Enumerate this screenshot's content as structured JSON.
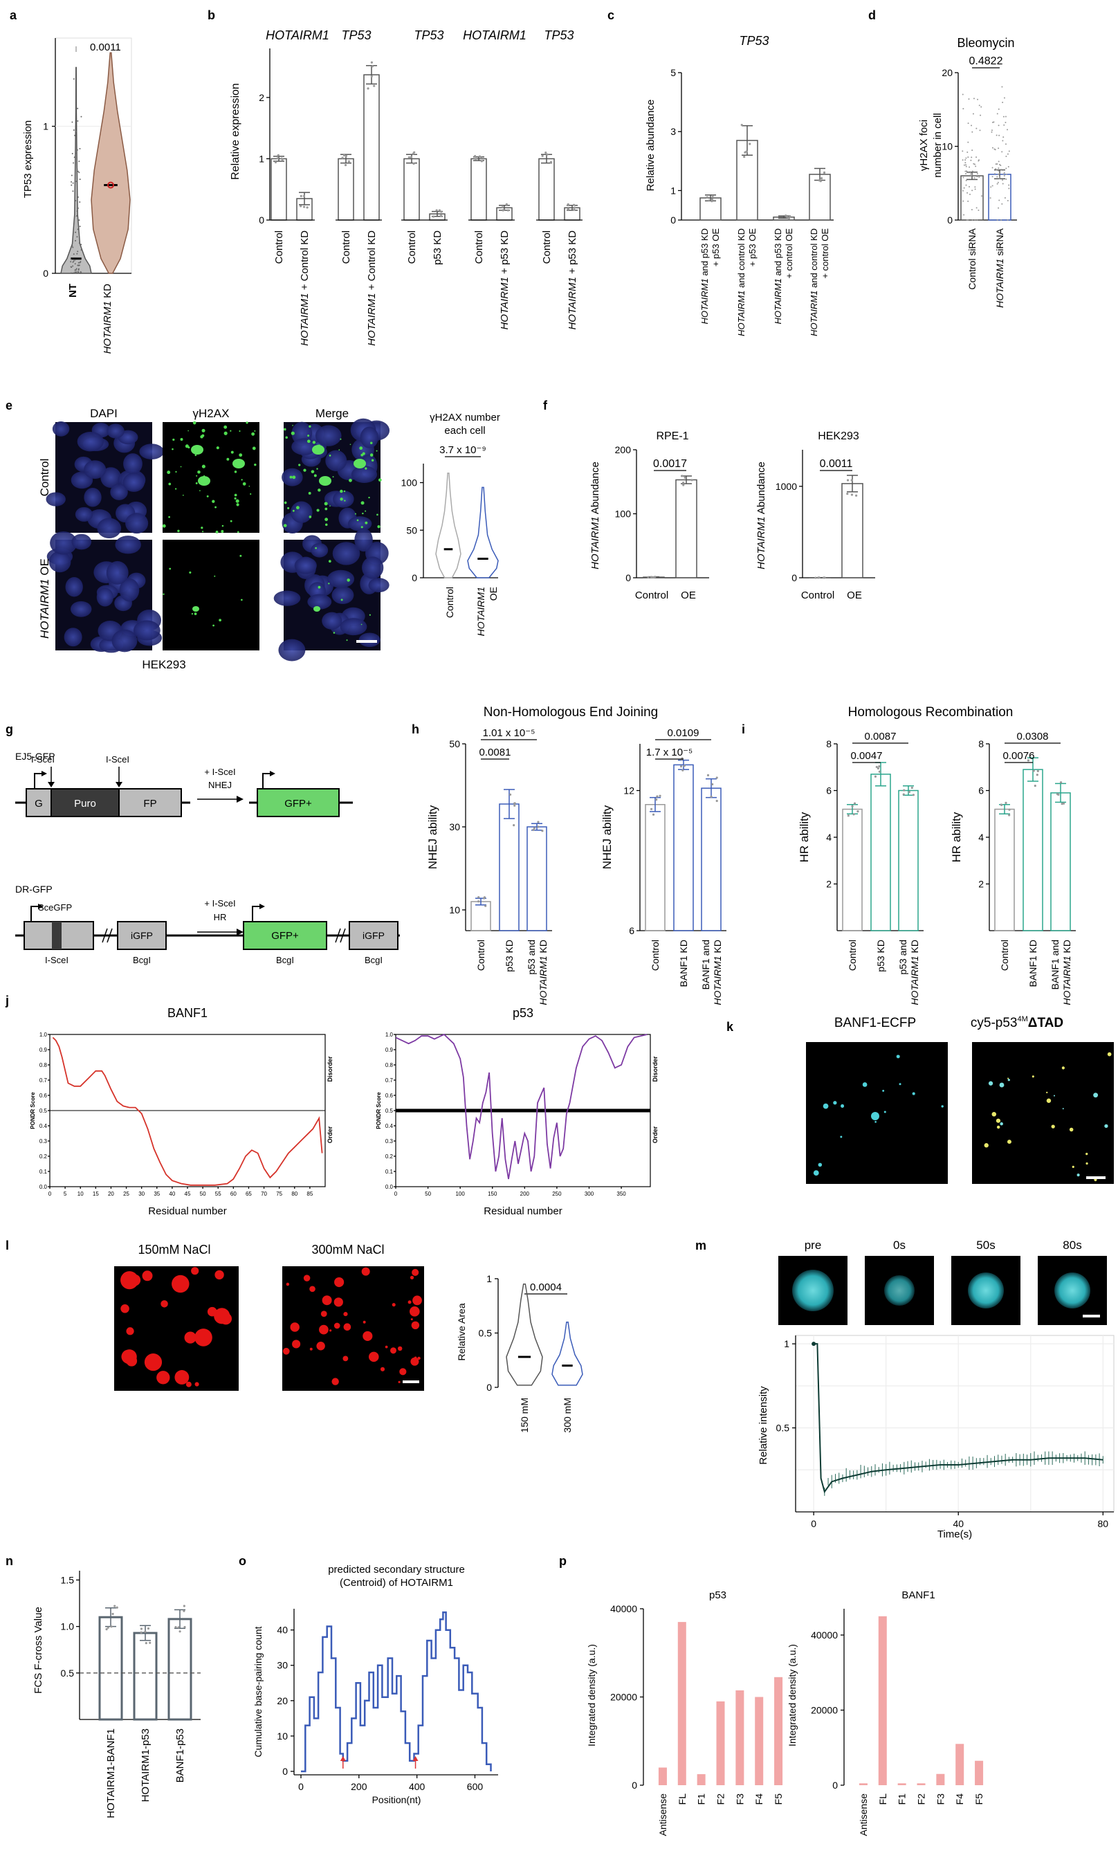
{
  "letters": {
    "a": "a",
    "b": "b",
    "c": "c",
    "d": "d",
    "e": "e",
    "f": "f",
    "g": "g",
    "h": "h",
    "i": "i",
    "j": "j",
    "k": "k",
    "l": "l",
    "m": "m",
    "n": "n",
    "o": "o",
    "p": "p"
  },
  "colors": {
    "blue": "#3a5bb8",
    "teal": "#2aa58c",
    "grey": "#777777",
    "red": "#d6332a",
    "purple": "#7d3aa3",
    "pink": "#f2a6a6",
    "cyan": "#4fd1d9",
    "violin_nt": "#bdbdbd",
    "violin_kd": "#d8b7a6"
  },
  "a": {
    "ylabel": "TP53 expression",
    "yticks": [
      "0",
      "1"
    ],
    "pval": "0.0011",
    "xlabels": [
      "NT",
      "HOTAIRM1 KD"
    ]
  },
  "b": {
    "ylabel": "Relative expression",
    "yticks": [
      "0",
      "1",
      "2"
    ],
    "headers": [
      {
        "text": "HOTAIRM1",
        "italic": true
      },
      {
        "text": "TP53",
        "italic": true
      },
      {
        "text": "TP53",
        "italic": true
      },
      {
        "text": "HOTAIRM1",
        "italic": true
      },
      {
        "text": "TP53",
        "italic": true
      }
    ],
    "xlabels": [
      "Control",
      "HOTAIRM1 + Control KD",
      "Control",
      "HOTAIRM1 + Control KD",
      "Control",
      "p53 KD",
      "Control",
      "HOTAIRM1 + p53 KD",
      "Control",
      "HOTAIRM1 + p53 KD"
    ]
  },
  "c": {
    "title": "TP53",
    "ylabel": "Relative abundance",
    "yticks": [
      "0",
      "1",
      "3",
      "5"
    ],
    "xlabels": [
      "HOTAIRM1 and p53 KD + p53 OE",
      "HOTAIRM1 and control KD + p53 OE",
      "HOTAIRM1 and p53 KD + control OE",
      "HOTAIRM1 and control KD + control OE"
    ]
  },
  "d": {
    "title": "Bleomycin",
    "ylabel": "γH2AX foci number in cell",
    "yticks": [
      "0",
      "10",
      "20"
    ],
    "pval": "0.4822",
    "xlabels": [
      "Control siRNA",
      "HOTAIRM1 siRNA"
    ]
  },
  "e": {
    "cols": [
      "DAPI",
      "γH2AX",
      "Merge"
    ],
    "rows": [
      "Control",
      "HOTAIRM1 OE"
    ],
    "caption": "HEK293",
    "violin_title": "γH2AX number each cell",
    "pval": "3.7 x 10⁻⁹",
    "yticks": [
      "0",
      "50",
      "100"
    ],
    "xlabels": [
      "Control",
      "HOTAIRM1 OE"
    ]
  },
  "f": {
    "ylabel": "HOTAIRM1 Abundance",
    "panels": [
      {
        "title": "RPE-1",
        "pval": "0.0017",
        "yticks": [
          "0",
          "100",
          "200"
        ]
      },
      {
        "title": "HEK293",
        "pval": "0.0011",
        "yticks": [
          "0",
          "1000"
        ]
      }
    ],
    "xlabels": [
      "Control",
      "OE"
    ]
  },
  "g": {
    "ej5": "EJ5-GFP",
    "dr": "DR-GFP",
    "isce": "I-SceI",
    "g": "G",
    "puro": "Puro",
    "fp": "FP",
    "plus_isce": "+ I-SceI",
    "nhej": "NHEJ",
    "hr": "HR",
    "gfpplus": "GFP+",
    "scegfp": "SceGFP",
    "igfp": "iGFP",
    "bcgi": "BcgI"
  },
  "h": {
    "title": "Non-Homologous End Joining",
    "ylabel": "NHEJ ability",
    "left": {
      "yticks": [
        "10",
        "30",
        "50"
      ],
      "xlabels": [
        "Control",
        "p53 KD",
        "p53 and HOTAIRM1 KD"
      ],
      "pvals": [
        "0.0081",
        "1.01 x 10⁻⁵"
      ]
    },
    "right": {
      "yticks": [
        "6",
        "12"
      ],
      "xlabels": [
        "Control",
        "BANF1 KD",
        "BANF1 and HOTAIRM1 KD"
      ],
      "pvals": [
        "1.7 x 10⁻⁵",
        "0.0109"
      ]
    }
  },
  "i": {
    "title": "Homologous Recombination",
    "ylabel": "HR ability",
    "left": {
      "yticks": [
        "2",
        "4",
        "6",
        "8"
      ],
      "xlabels": [
        "Control",
        "p53 KD",
        "p53 and HOTAIRM1 KD"
      ],
      "pvals": [
        "0.0047",
        "0.0087"
      ]
    },
    "right": {
      "yticks": [
        "2",
        "4",
        "6",
        "8"
      ],
      "xlabels": [
        "Control",
        "BANF1 KD",
        "BANF1 and HOTAIRM1 KD"
      ],
      "pvals": [
        "0.0076",
        "0.0308"
      ]
    }
  },
  "j": {
    "xlabel": "Residual number",
    "ylabel": "PONDR Score",
    "disorder": "Disorder",
    "order": "Order",
    "left": {
      "title": "BANF1",
      "xticks": [
        "0",
        "5",
        "10",
        "15",
        "20",
        "25",
        "30",
        "35",
        "40",
        "45",
        "50",
        "55",
        "60",
        "65",
        "70",
        "75",
        "80",
        "85"
      ],
      "yticks": [
        "0.0",
        "0.1",
        "0.2",
        "0.3",
        "0.4",
        "0.5",
        "0.6",
        "0.7",
        "0.8",
        "0.9",
        "1.0"
      ]
    },
    "right": {
      "title": "p53",
      "xticks": [
        "0",
        "50",
        "100",
        "150",
        "200",
        "250",
        "300",
        "350"
      ],
      "yticks": [
        "0.0",
        "0.1",
        "0.2",
        "0.3",
        "0.4",
        "0.5",
        "0.6",
        "0.7",
        "0.8",
        "0.9",
        "1.0"
      ]
    }
  },
  "k": {
    "left": "BANF1-ECFP",
    "right": "cy5-p53",
    "right_sup": "4M",
    "right_tail": "ΔTAD"
  },
  "l": {
    "left": "150mM NaCl",
    "right": "300mM NaCl",
    "ylabel": "Relative Area",
    "yticks": [
      "0",
      "0.5",
      "1"
    ],
    "pval": "0.0004",
    "xlabels": [
      "150 mM",
      "300 mM"
    ]
  },
  "m": {
    "frames": [
      "pre",
      "0s",
      "50s",
      "80s"
    ],
    "ylabel": "Relative intensity",
    "xlabel": "Time(s)",
    "xticks": [
      "0",
      "40",
      "80"
    ],
    "yticks": [
      "0.5",
      "1"
    ]
  },
  "n": {
    "ylabel": "FCS F-cross Value",
    "yticks": [
      "0.5",
      "1.0",
      "1.5"
    ],
    "xlabels": [
      "HOTAIRM1-BANF1",
      "HOTAIRM1-p53",
      "BANF1-p53"
    ]
  },
  "o": {
    "title": "predicted secondary structure (Centroid) of HOTAIRM1",
    "title1": "predicted secondary structure",
    "title2": "(Centroid) of HOTAIRM1",
    "ylabel": "Cumulative base-pairing count",
    "xlabel": "Position(nt)",
    "xticks": [
      "0",
      "200",
      "400",
      "600"
    ],
    "yticks": [
      "0",
      "10",
      "20",
      "30",
      "40"
    ]
  },
  "p": {
    "ylabel": "Integrated density (a.u.)",
    "categories": [
      "Antisense",
      "FL",
      "F1",
      "F2",
      "F3",
      "F4",
      "F5"
    ],
    "left": {
      "title": "p53",
      "yticks": [
        "0",
        "20000",
        "40000"
      ]
    },
    "right": {
      "title": "BANF1",
      "yticks": [
        "0",
        "20000",
        "40000"
      ]
    }
  },
  "chart_data": [
    {
      "panel": "a",
      "type": "violin",
      "categories": [
        "NT",
        "HOTAIRM1 KD"
      ],
      "medians": [
        0.1,
        0.6
      ],
      "pvalue": "0.0011",
      "ylabel": "TP53 expression",
      "ylim": [
        0,
        1.6
      ]
    },
    {
      "panel": "b",
      "type": "bar",
      "categories": [
        "Control",
        "HOTAIRM1 + Control KD",
        "Control",
        "HOTAIRM1 + Control KD",
        "Control",
        "p53 KD",
        "Control",
        "HOTAIRM1 + p53 KD",
        "Control",
        "HOTAIRM1 + p53 KD"
      ],
      "values": [
        1.0,
        0.35,
        1.0,
        2.37,
        1.0,
        0.1,
        1.0,
        0.2,
        1.0,
        0.2
      ],
      "errors": [
        0.04,
        0.1,
        0.07,
        0.15,
        0.07,
        0.04,
        0.03,
        0.04,
        0.07,
        0.04
      ],
      "ylabel": "Relative expression",
      "ylim": [
        0,
        2.8
      ]
    },
    {
      "panel": "c",
      "type": "bar",
      "title": "TP53",
      "categories": [
        "HOTAIRM1 and p53 KD + p53 OE",
        "HOTAIRM1 and control KD + p53 OE",
        "HOTAIRM1 and p53 KD + control OE",
        "HOTAIRM1 and control KD + control OE"
      ],
      "values": [
        0.75,
        2.7,
        0.1,
        1.55
      ],
      "errors": [
        0.1,
        0.5,
        0.04,
        0.2
      ],
      "ylabel": "Relative abundance",
      "ylim": [
        0,
        5
      ]
    },
    {
      "panel": "d",
      "type": "bar",
      "title": "Bleomycin",
      "categories": [
        "Control siRNA",
        "HOTAIRM1 siRNA"
      ],
      "values": [
        6.0,
        6.2
      ],
      "errors": [
        0.5,
        0.6
      ],
      "ylabel": "γH2AX foci number in cell",
      "ylim": [
        0,
        20
      ],
      "pvalue": "0.4822"
    },
    {
      "panel": "e",
      "type": "violin",
      "categories": [
        "Control",
        "HOTAIRM1 OE"
      ],
      "medians": [
        30,
        20
      ],
      "ylim": [
        0,
        120
      ],
      "pvalue": "3.7 x 10⁻⁹"
    },
    {
      "panel": "f-RPE-1",
      "type": "bar",
      "categories": [
        "Control",
        "OE"
      ],
      "values": [
        1,
        153
      ],
      "errors": [
        0.5,
        6
      ],
      "ylim": [
        0,
        200
      ],
      "pvalue": "0.0017"
    },
    {
      "panel": "f-HEK293",
      "type": "bar",
      "categories": [
        "Control",
        "OE"
      ],
      "values": [
        1,
        1030
      ],
      "errors": [
        1,
        90
      ],
      "ylim": [
        0,
        1400
      ],
      "pvalue": "0.0011"
    },
    {
      "panel": "h-left",
      "type": "bar",
      "categories": [
        "Control",
        "p53 KD",
        "p53 and HOTAIRM1 KD"
      ],
      "values": [
        12,
        35.5,
        30
      ],
      "errors": [
        0.8,
        3.5,
        0.8
      ],
      "ylim": [
        5,
        50
      ],
      "pvalues": [
        "0.0081",
        "1.01 x 10⁻⁵"
      ]
    },
    {
      "panel": "h-right",
      "type": "bar",
      "categories": [
        "Control",
        "BANF1 KD",
        "BANF1 and HOTAIRM1 KD"
      ],
      "values": [
        11.4,
        13.1,
        12.1
      ],
      "errors": [
        0.3,
        0.2,
        0.4
      ],
      "ylim": [
        6,
        14
      ],
      "pvalues": [
        "1.7 x 10⁻⁵",
        "0.0109"
      ]
    },
    {
      "panel": "i-left",
      "type": "bar",
      "categories": [
        "Control",
        "p53 KD",
        "p53 and HOTAIRM1 KD"
      ],
      "values": [
        5.2,
        6.7,
        6.0
      ],
      "errors": [
        0.2,
        0.5,
        0.2
      ],
      "ylim": [
        0,
        8
      ],
      "pvalues": [
        "0.0047",
        "0.0087"
      ]
    },
    {
      "panel": "i-right",
      "type": "bar",
      "categories": [
        "Control",
        "BANF1 KD",
        "BANF1 and HOTAIRM1 KD"
      ],
      "values": [
        5.2,
        6.9,
        5.9
      ],
      "errors": [
        0.2,
        0.5,
        0.4
      ],
      "ylim": [
        0,
        8
      ],
      "pvalues": [
        "0.0076",
        "0.0308"
      ]
    },
    {
      "panel": "j-BANF1",
      "type": "line",
      "x": [
        1,
        2,
        3,
        4,
        6,
        8,
        10,
        13,
        15,
        17,
        18,
        20,
        22,
        24,
        26,
        28,
        30,
        32,
        34,
        36,
        38,
        40,
        43,
        46,
        50,
        54,
        58,
        60,
        62,
        64,
        66,
        68,
        70,
        72,
        74,
        76,
        78,
        80,
        82,
        84,
        86,
        88,
        89
      ],
      "y": [
        0.98,
        0.96,
        0.92,
        0.85,
        0.68,
        0.66,
        0.66,
        0.72,
        0.76,
        0.76,
        0.73,
        0.64,
        0.56,
        0.53,
        0.52,
        0.52,
        0.48,
        0.38,
        0.25,
        0.16,
        0.08,
        0.04,
        0.02,
        0.01,
        0.01,
        0.01,
        0.02,
        0.05,
        0.12,
        0.2,
        0.24,
        0.22,
        0.12,
        0.06,
        0.1,
        0.16,
        0.22,
        0.26,
        0.3,
        0.34,
        0.38,
        0.45,
        0.22
      ],
      "xlim": [
        0,
        90
      ],
      "ylim": [
        0,
        1
      ]
    },
    {
      "panel": "j-p53",
      "type": "line",
      "x": [
        0,
        10,
        20,
        30,
        40,
        50,
        60,
        70,
        75,
        80,
        85,
        90,
        100,
        105,
        110,
        115,
        120,
        125,
        130,
        135,
        140,
        145,
        150,
        155,
        160,
        165,
        170,
        175,
        180,
        185,
        190,
        195,
        200,
        205,
        210,
        215,
        220,
        225,
        230,
        235,
        240,
        245,
        250,
        255,
        260,
        265,
        270,
        280,
        290,
        300,
        310,
        320,
        330,
        340,
        350,
        360,
        370,
        380,
        390
      ],
      "y": [
        0.98,
        0.96,
        0.94,
        0.96,
        0.99,
        0.99,
        0.97,
        0.99,
        1.0,
        0.98,
        0.96,
        0.94,
        0.84,
        0.72,
        0.4,
        0.18,
        0.3,
        0.45,
        0.42,
        0.55,
        0.62,
        0.75,
        0.35,
        0.1,
        0.2,
        0.45,
        0.18,
        0.05,
        0.18,
        0.3,
        0.15,
        0.25,
        0.35,
        0.3,
        0.1,
        0.2,
        0.55,
        0.6,
        0.65,
        0.28,
        0.12,
        0.32,
        0.42,
        0.2,
        0.25,
        0.48,
        0.55,
        0.78,
        0.92,
        0.97,
        0.99,
        0.96,
        0.88,
        0.78,
        0.8,
        0.92,
        0.98,
        0.99,
        1.0
      ],
      "xlim": [
        0,
        395
      ],
      "ylim": [
        0,
        1
      ]
    },
    {
      "panel": "l",
      "type": "violin",
      "categories": [
        "150 mM",
        "300 mM"
      ],
      "medians": [
        0.28,
        0.2
      ],
      "ylim": [
        0,
        1
      ],
      "pvalue": "0.0004"
    },
    {
      "panel": "m",
      "type": "line",
      "x": [
        0,
        1,
        2,
        3,
        5,
        8,
        12,
        16,
        20,
        25,
        30,
        35,
        40,
        45,
        50,
        55,
        60,
        65,
        70,
        75,
        80
      ],
      "y": [
        1.0,
        1.0,
        0.2,
        0.12,
        0.18,
        0.2,
        0.22,
        0.24,
        0.25,
        0.26,
        0.27,
        0.28,
        0.28,
        0.29,
        0.3,
        0.31,
        0.31,
        0.32,
        0.32,
        0.32,
        0.31
      ],
      "xlabel": "Time(s)",
      "ylabel": "Relative intensity",
      "xlim": [
        -5,
        83
      ],
      "ylim": [
        0,
        1.05
      ]
    },
    {
      "panel": "n",
      "type": "bar",
      "categories": [
        "HOTAIRM1-BANF1",
        "HOTAIRM1-p53",
        "BANF1-p53"
      ],
      "values": [
        1.1,
        0.93,
        1.08
      ],
      "errors": [
        0.1,
        0.08,
        0.1
      ],
      "ylabel": "FCS F-cross Value",
      "ylim": [
        0,
        1.6
      ],
      "reference_line": 0.5
    },
    {
      "panel": "o",
      "type": "line",
      "x": [
        0,
        15,
        30,
        45,
        60,
        75,
        90,
        105,
        120,
        135,
        145,
        160,
        175,
        190,
        205,
        220,
        235,
        250,
        265,
        280,
        300,
        315,
        330,
        345,
        360,
        375,
        390,
        405,
        420,
        435,
        450,
        465,
        480,
        490,
        500,
        515,
        530,
        545,
        560,
        575,
        590,
        610,
        625,
        640,
        655
      ],
      "y": [
        0,
        13,
        21,
        15,
        28,
        38,
        41,
        32,
        18,
        5,
        3,
        8,
        15,
        25,
        13,
        20,
        28,
        18,
        30,
        21,
        32,
        22,
        27,
        17,
        8,
        3,
        5,
        13,
        27,
        37,
        32,
        40,
        43,
        45,
        40,
        35,
        32,
        23,
        30,
        28,
        22,
        18,
        8,
        2,
        0
      ],
      "xlabel": "Position(nt)",
      "ylabel": "Cumulative base-pairing count",
      "xlim": [
        0,
        680
      ],
      "ylim": [
        0,
        46
      ]
    },
    {
      "panel": "p-p53",
      "type": "bar",
      "title": "p53",
      "categories": [
        "Antisense",
        "FL",
        "F1",
        "F2",
        "F3",
        "F4",
        "F5"
      ],
      "values": [
        4000,
        37000,
        2500,
        19000,
        21500,
        20000,
        24500
      ],
      "ylim": [
        0,
        40000
      ],
      "ylabel": "Integrated density (a.u.)"
    },
    {
      "panel": "p-BANF1",
      "type": "bar",
      "title": "BANF1",
      "categories": [
        "Antisense",
        "FL",
        "F1",
        "F2",
        "F3",
        "F4",
        "F5"
      ],
      "values": [
        500,
        45000,
        500,
        500,
        3000,
        11000,
        6500
      ],
      "ylim": [
        0,
        47000
      ],
      "ylabel": "Integrated density (a.u.)"
    }
  ]
}
